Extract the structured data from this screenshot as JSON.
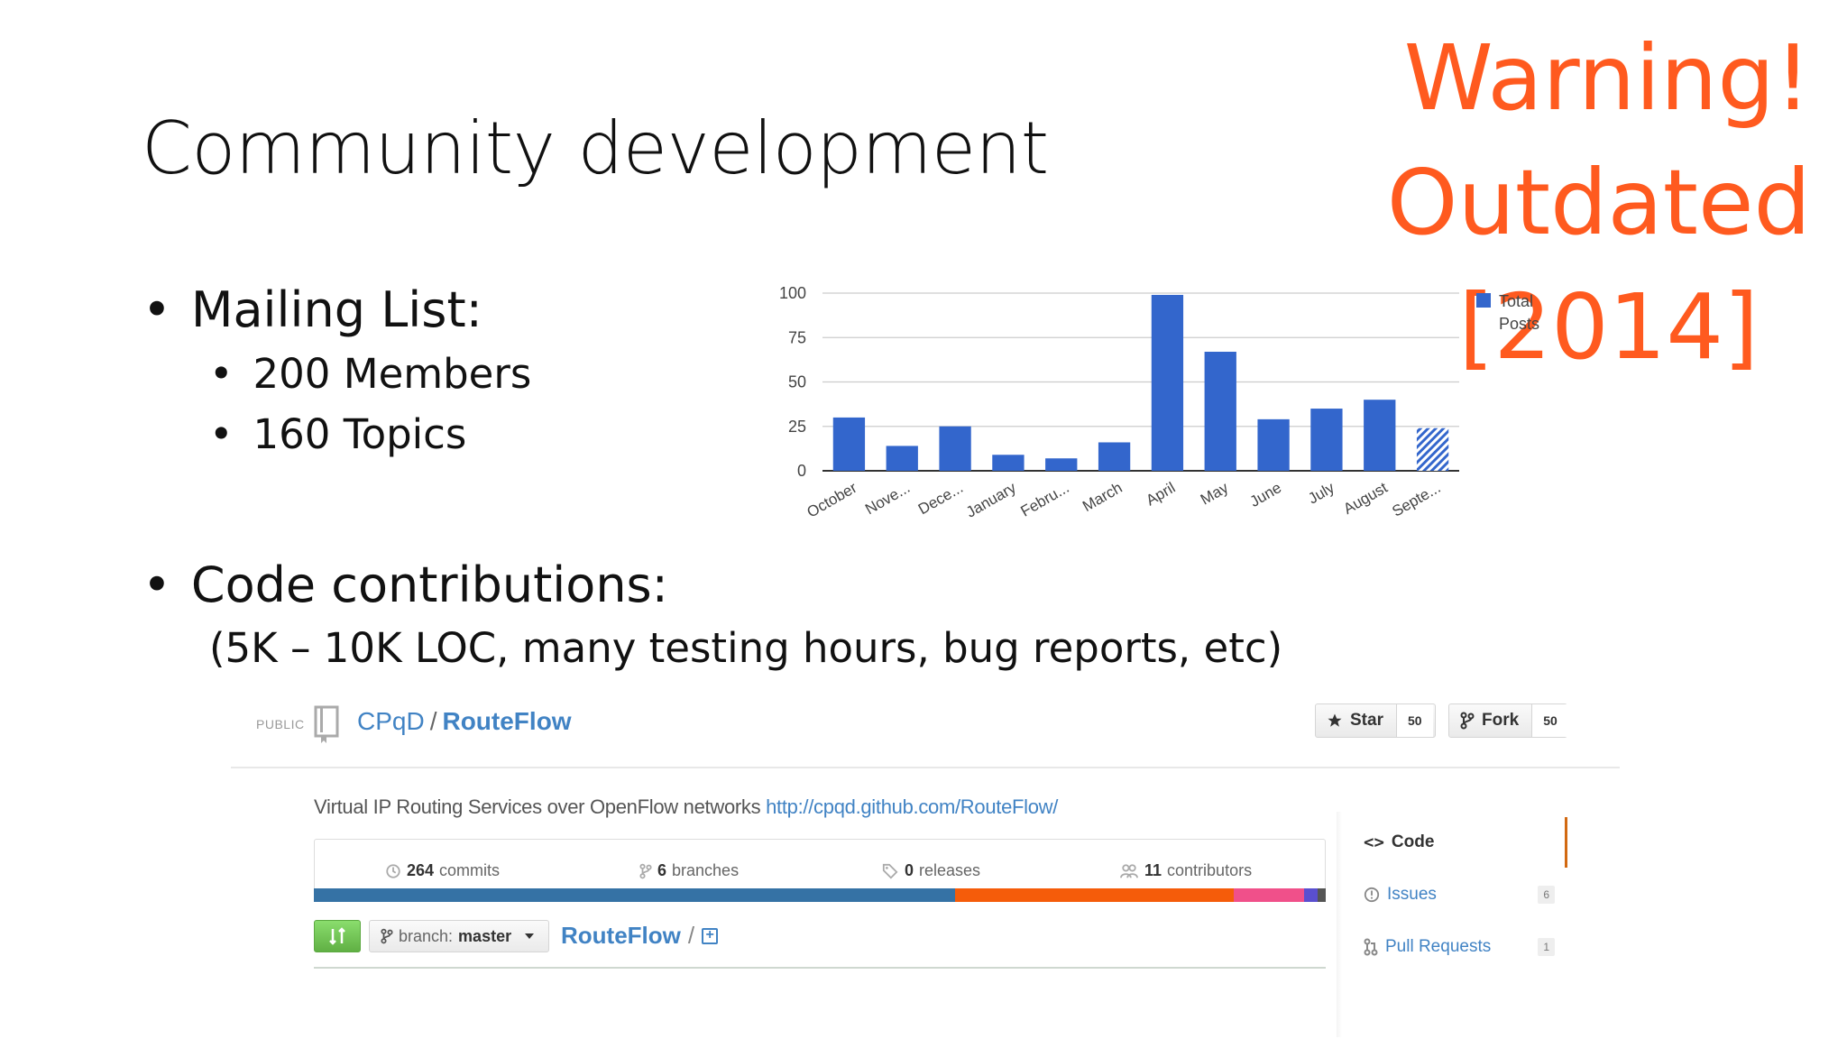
{
  "slide": {
    "title": "Community development",
    "warning": {
      "line1": "Warning!",
      "line2": "Outdated",
      "line3": "[2014]"
    },
    "bullets": {
      "mailing_list": "Mailing List:",
      "members": "200 Members",
      "topics": "160 Topics",
      "code_contributions": "Code contributions:",
      "code_detail": "(5K – 10K LOC, many testing hours, bug reports, etc)"
    },
    "bullet_glyph": "•"
  },
  "chart_data": {
    "type": "bar",
    "categories": [
      "October",
      "Nove...",
      "Dece...",
      "January",
      "Febru...",
      "March",
      "April",
      "May",
      "June",
      "July",
      "August",
      "Septe..."
    ],
    "series": [
      {
        "name": "Total Posts",
        "values": [
          30,
          14,
          25,
          9,
          7,
          16,
          99,
          67,
          29,
          35,
          40,
          24
        ]
      }
    ],
    "last_bar_partial": true,
    "yticks": [
      0,
      25,
      50,
      75,
      100
    ],
    "ylim": [
      0,
      100
    ],
    "legend_position": "right",
    "grid": true,
    "bar_color": "#3366cc",
    "legend": {
      "line1": "Total",
      "line2": "Posts"
    }
  },
  "github": {
    "visibility": "PUBLIC",
    "owner": "CPqD",
    "separator": "/",
    "repo": "RouteFlow",
    "star_label": "Star",
    "star_count": "50",
    "fork_label": "Fork",
    "fork_count": "50",
    "description": "Virtual IP Routing Services over OpenFlow networks",
    "homepage": "http://cpqd.github.com/RouteFlow/",
    "stats": {
      "commits_count": "264",
      "commits_label": "commits",
      "branches_count": "6",
      "branches_label": "branches",
      "releases_count": "0",
      "releases_label": "releases",
      "contributors_count": "11",
      "contributors_label": "contributors"
    },
    "languages": [
      {
        "color": "#3572a5",
        "share": 0.634
      },
      {
        "color": "#f55c0a",
        "share": 0.275
      },
      {
        "color": "#f0508a",
        "share": 0.07
      },
      {
        "color": "#5a4fcf",
        "share": 0.013
      },
      {
        "color": "#555555",
        "share": 0.008
      }
    ],
    "branch_prefix": "branch:",
    "branch_name": "master",
    "path_root": "RouteFlow",
    "path_slash": "/",
    "nav": {
      "code": "Code",
      "issues": "Issues",
      "issues_count": "6",
      "pull_requests": "Pull Requests",
      "pull_requests_count": "1"
    }
  }
}
